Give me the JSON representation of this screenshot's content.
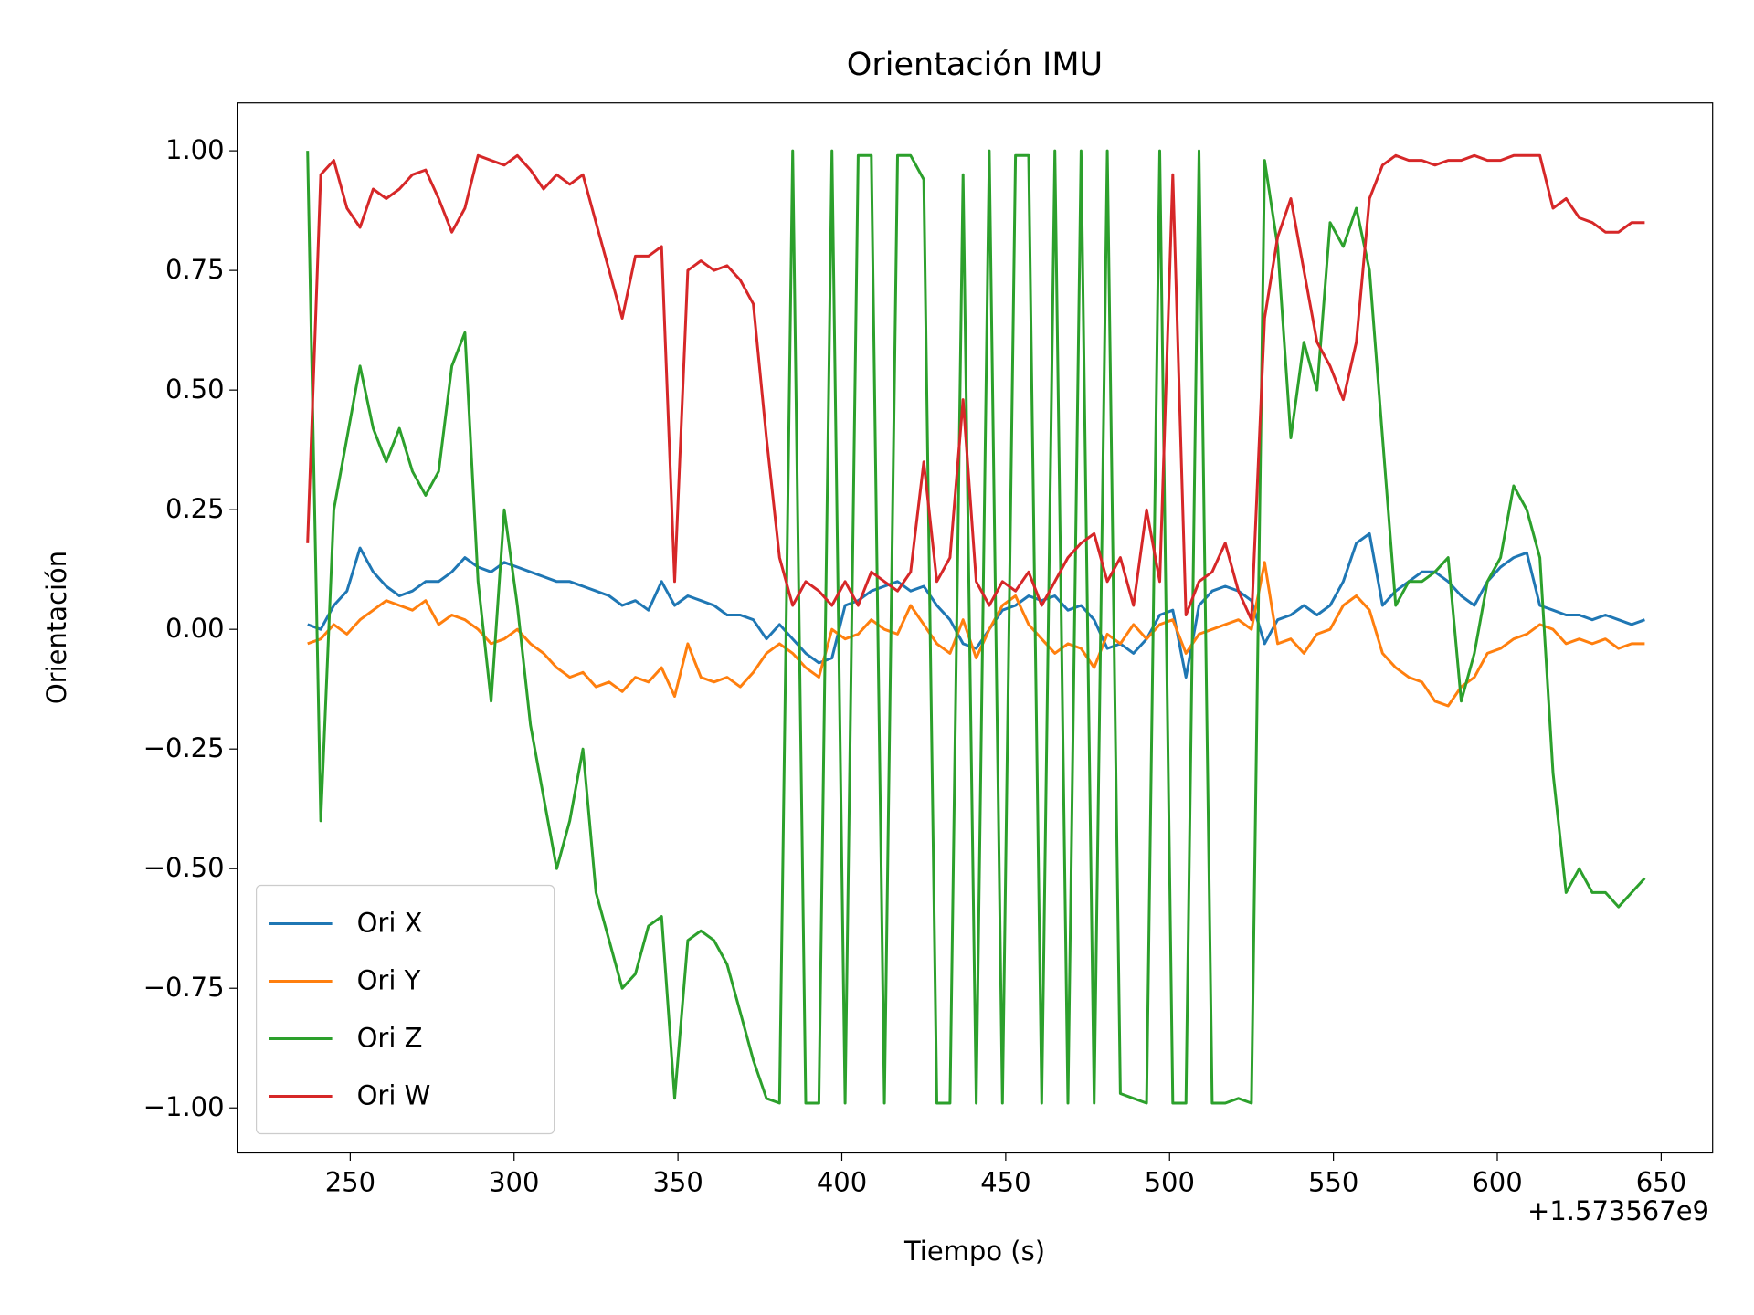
{
  "chart_data": {
    "type": "line",
    "title": "Orientación IMU",
    "xlabel": "Tiempo (s)",
    "ylabel": "Orientación",
    "x_offset_label": "+1.573567e9",
    "x": [
      237,
      241,
      245,
      249,
      253,
      257,
      261,
      265,
      269,
      273,
      277,
      281,
      285,
      289,
      293,
      297,
      301,
      305,
      309,
      313,
      317,
      321,
      325,
      329,
      333,
      337,
      341,
      345,
      349,
      353,
      357,
      361,
      365,
      369,
      373,
      377,
      381,
      385,
      389,
      393,
      397,
      401,
      405,
      409,
      413,
      417,
      421,
      425,
      429,
      433,
      437,
      441,
      445,
      449,
      453,
      457,
      461,
      465,
      469,
      473,
      477,
      481,
      485,
      489,
      493,
      497,
      501,
      505,
      509,
      513,
      517,
      521,
      525,
      529,
      533,
      537,
      541,
      545,
      549,
      553,
      557,
      561,
      565,
      569,
      573,
      577,
      581,
      585,
      589,
      593,
      597,
      601,
      605,
      609,
      613,
      617,
      621,
      625,
      629,
      633,
      637,
      641,
      645
    ],
    "series": [
      {
        "name": "Ori X",
        "color": "#1f77b4",
        "values": [
          0.01,
          0.0,
          0.05,
          0.08,
          0.17,
          0.12,
          0.09,
          0.07,
          0.08,
          0.1,
          0.1,
          0.12,
          0.15,
          0.13,
          0.12,
          0.14,
          0.13,
          0.12,
          0.11,
          0.1,
          0.1,
          0.09,
          0.08,
          0.07,
          0.05,
          0.06,
          0.04,
          0.1,
          0.05,
          0.07,
          0.06,
          0.05,
          0.03,
          0.03,
          0.02,
          -0.02,
          0.01,
          -0.02,
          -0.05,
          -0.07,
          -0.06,
          0.05,
          0.06,
          0.08,
          0.09,
          0.1,
          0.08,
          0.09,
          0.05,
          0.02,
          -0.03,
          -0.04,
          0.0,
          0.04,
          0.05,
          0.07,
          0.06,
          0.07,
          0.04,
          0.05,
          0.02,
          -0.04,
          -0.03,
          -0.05,
          -0.02,
          0.03,
          0.04,
          -0.1,
          0.05,
          0.08,
          0.09,
          0.08,
          0.06,
          -0.03,
          0.02,
          0.03,
          0.05,
          0.03,
          0.05,
          0.1,
          0.18,
          0.2,
          0.05,
          0.08,
          0.1,
          0.12,
          0.12,
          0.1,
          0.07,
          0.05,
          0.1,
          0.13,
          0.15,
          0.16,
          0.05,
          0.04,
          0.03,
          0.03,
          0.02,
          0.03,
          0.02,
          0.01,
          0.02
        ]
      },
      {
        "name": "Ori Y",
        "color": "#ff7f0e",
        "values": [
          -0.03,
          -0.02,
          0.01,
          -0.01,
          0.02,
          0.04,
          0.06,
          0.05,
          0.04,
          0.06,
          0.01,
          0.03,
          0.02,
          0.0,
          -0.03,
          -0.02,
          0.0,
          -0.03,
          -0.05,
          -0.08,
          -0.1,
          -0.09,
          -0.12,
          -0.11,
          -0.13,
          -0.1,
          -0.11,
          -0.08,
          -0.14,
          -0.03,
          -0.1,
          -0.11,
          -0.1,
          -0.12,
          -0.09,
          -0.05,
          -0.03,
          -0.05,
          -0.08,
          -0.1,
          0.0,
          -0.02,
          -0.01,
          0.02,
          0.0,
          -0.01,
          0.05,
          0.01,
          -0.03,
          -0.05,
          0.02,
          -0.06,
          0.0,
          0.05,
          0.07,
          0.01,
          -0.02,
          -0.05,
          -0.03,
          -0.04,
          -0.08,
          -0.01,
          -0.03,
          0.01,
          -0.02,
          0.01,
          0.02,
          -0.05,
          -0.01,
          0.0,
          0.01,
          0.02,
          0.0,
          0.14,
          -0.03,
          -0.02,
          -0.05,
          -0.01,
          0.0,
          0.05,
          0.07,
          0.04,
          -0.05,
          -0.08,
          -0.1,
          -0.11,
          -0.15,
          -0.16,
          -0.12,
          -0.1,
          -0.05,
          -0.04,
          -0.02,
          -0.01,
          0.01,
          0.0,
          -0.03,
          -0.02,
          -0.03,
          -0.02,
          -0.04,
          -0.03,
          -0.03
        ]
      },
      {
        "name": "Ori Z",
        "color": "#2ca02c",
        "values": [
          1.0,
          -0.4,
          0.25,
          0.4,
          0.55,
          0.42,
          0.35,
          0.42,
          0.33,
          0.28,
          0.33,
          0.55,
          0.62,
          0.1,
          -0.15,
          0.25,
          0.05,
          -0.2,
          -0.35,
          -0.5,
          -0.4,
          -0.25,
          -0.55,
          -0.65,
          -0.75,
          -0.72,
          -0.62,
          -0.6,
          -0.98,
          -0.65,
          -0.63,
          -0.65,
          -0.7,
          -0.8,
          -0.9,
          -0.98,
          -0.99,
          1.0,
          -0.99,
          -0.99,
          1.0,
          -0.99,
          0.99,
          0.99,
          -0.99,
          0.99,
          0.99,
          0.94,
          -0.99,
          -0.99,
          0.95,
          -0.99,
          1.0,
          -0.99,
          0.99,
          0.99,
          -0.99,
          1.0,
          -0.99,
          1.0,
          -0.99,
          1.0,
          -0.97,
          -0.98,
          -0.99,
          1.0,
          -0.99,
          -0.99,
          1.0,
          -0.99,
          -0.99,
          -0.98,
          -0.99,
          0.98,
          0.8,
          0.4,
          0.6,
          0.5,
          0.85,
          0.8,
          0.88,
          0.75,
          0.4,
          0.05,
          0.1,
          0.1,
          0.12,
          0.15,
          -0.15,
          -0.05,
          0.1,
          0.15,
          0.3,
          0.25,
          0.15,
          -0.3,
          -0.55,
          -0.5,
          -0.55,
          -0.55,
          -0.58,
          -0.55,
          -0.52
        ]
      },
      {
        "name": "Ori W",
        "color": "#d62728",
        "values": [
          0.18,
          0.95,
          0.98,
          0.88,
          0.84,
          0.92,
          0.9,
          0.92,
          0.95,
          0.96,
          0.9,
          0.83,
          0.88,
          0.99,
          0.98,
          0.97,
          0.99,
          0.96,
          0.92,
          0.95,
          0.93,
          0.95,
          0.85,
          0.75,
          0.65,
          0.78,
          0.78,
          0.8,
          0.1,
          0.75,
          0.77,
          0.75,
          0.76,
          0.73,
          0.68,
          0.4,
          0.15,
          0.05,
          0.1,
          0.08,
          0.05,
          0.1,
          0.05,
          0.12,
          0.1,
          0.08,
          0.12,
          0.35,
          0.1,
          0.15,
          0.48,
          0.1,
          0.05,
          0.1,
          0.08,
          0.12,
          0.05,
          0.1,
          0.15,
          0.18,
          0.2,
          0.1,
          0.15,
          0.05,
          0.25,
          0.1,
          0.95,
          0.03,
          0.1,
          0.12,
          0.18,
          0.08,
          0.02,
          0.65,
          0.82,
          0.9,
          0.75,
          0.6,
          0.55,
          0.48,
          0.6,
          0.9,
          0.97,
          0.99,
          0.98,
          0.98,
          0.97,
          0.98,
          0.98,
          0.99,
          0.98,
          0.98,
          0.99,
          0.99,
          0.99,
          0.88,
          0.9,
          0.86,
          0.85,
          0.83,
          0.83,
          0.85,
          0.85
        ]
      }
    ],
    "xlim": [
      215.5,
      665.7
    ],
    "ylim": [
      -1.094,
      1.1
    ],
    "xticks": [
      250,
      300,
      350,
      400,
      450,
      500,
      550,
      600,
      650
    ],
    "yticks": [
      {
        "value": -1,
        "label": "−1.00"
      },
      {
        "value": -0.75,
        "label": "−0.75"
      },
      {
        "value": -0.5,
        "label": "−0.50"
      },
      {
        "value": -0.25,
        "label": "−0.25"
      },
      {
        "value": 0,
        "label": "0.00"
      },
      {
        "value": 0.25,
        "label": "0.25"
      },
      {
        "value": 0.5,
        "label": "0.50"
      },
      {
        "value": 0.75,
        "label": "0.75"
      },
      {
        "value": 1,
        "label": "1.00"
      }
    ],
    "grid": false,
    "legend": "lower left"
  }
}
